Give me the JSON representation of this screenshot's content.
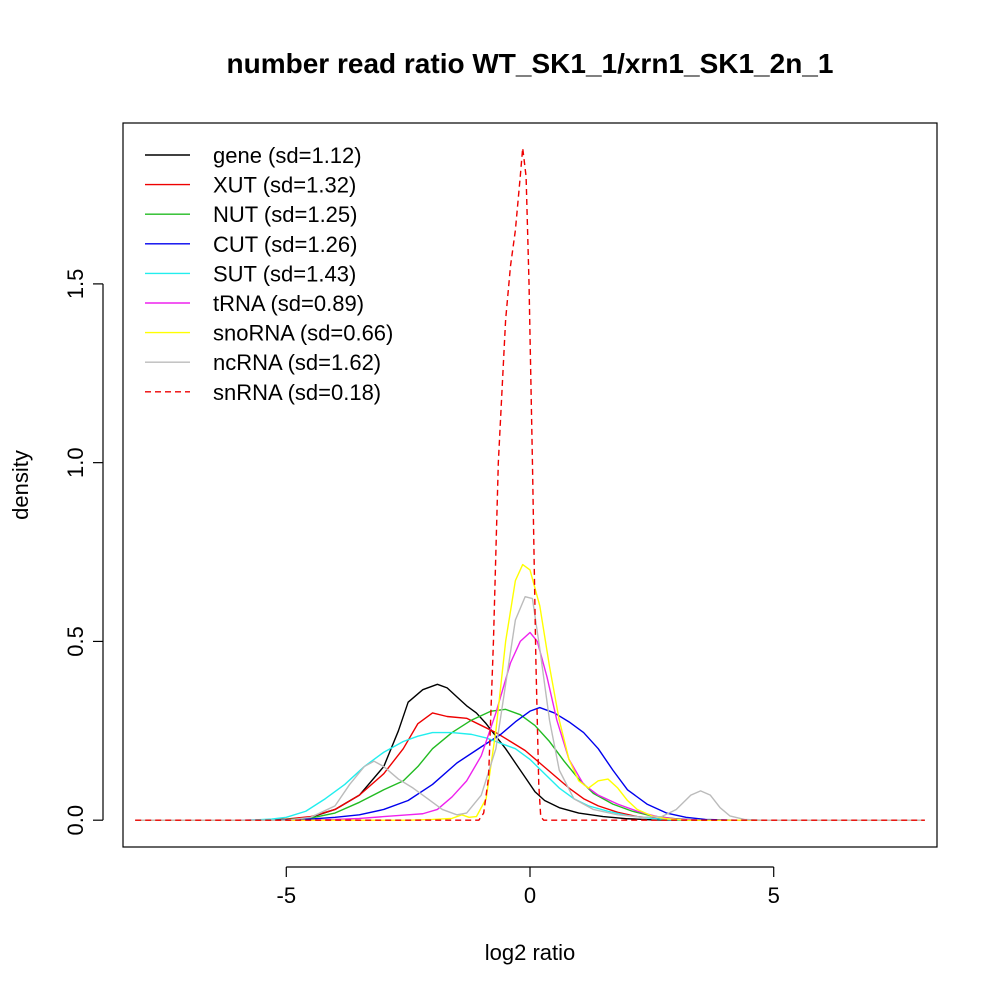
{
  "chart_data": {
    "type": "line",
    "title": "number read ratio WT_SK1_1/xrn1_SK1_2n_1",
    "xlabel": "log2 ratio",
    "ylabel": "density",
    "xlim": [
      -8.35,
      8.35
    ],
    "ylim": [
      -0.075,
      1.95
    ],
    "x_ticks": [
      -5,
      0,
      5
    ],
    "x_tick_labels": [
      "-5",
      "0",
      "5"
    ],
    "y_ticks": [
      0,
      0.5,
      1.0,
      1.5
    ],
    "y_tick_labels": [
      "0.0",
      "0.5",
      "1.0",
      "1.5"
    ],
    "grid": false,
    "legend_position": "top-left",
    "series": [
      {
        "name": "gene (sd=1.12)",
        "color": "#000000",
        "dash": "solid",
        "points": [
          [
            -8.1,
            0
          ],
          [
            -5.5,
            0
          ],
          [
            -5,
            0.002
          ],
          [
            -4.5,
            0.008
          ],
          [
            -4,
            0.03
          ],
          [
            -3.5,
            0.07
          ],
          [
            -3,
            0.15
          ],
          [
            -2.7,
            0.25
          ],
          [
            -2.5,
            0.33
          ],
          [
            -2.2,
            0.365
          ],
          [
            -1.9,
            0.38
          ],
          [
            -1.7,
            0.37
          ],
          [
            -1.5,
            0.345
          ],
          [
            -1.3,
            0.32
          ],
          [
            -1.1,
            0.3
          ],
          [
            -0.9,
            0.27
          ],
          [
            -0.7,
            0.235
          ],
          [
            -0.5,
            0.2
          ],
          [
            -0.3,
            0.16
          ],
          [
            -0.1,
            0.12
          ],
          [
            0.1,
            0.08
          ],
          [
            0.3,
            0.055
          ],
          [
            0.6,
            0.035
          ],
          [
            1,
            0.02
          ],
          [
            1.5,
            0.01
          ],
          [
            2,
            0.004
          ],
          [
            2.5,
            0.001
          ],
          [
            3,
            0
          ],
          [
            8.1,
            0
          ]
        ]
      },
      {
        "name": "XUT (sd=1.32)",
        "color": "#ee0000",
        "dash": "solid",
        "points": [
          [
            -8.1,
            0
          ],
          [
            -5.5,
            0
          ],
          [
            -5,
            0.003
          ],
          [
            -4.5,
            0.01
          ],
          [
            -4,
            0.03
          ],
          [
            -3.5,
            0.07
          ],
          [
            -3,
            0.13
          ],
          [
            -2.6,
            0.2
          ],
          [
            -2.3,
            0.27
          ],
          [
            -2,
            0.3
          ],
          [
            -1.7,
            0.29
          ],
          [
            -1.3,
            0.285
          ],
          [
            -1,
            0.265
          ],
          [
            -0.7,
            0.245
          ],
          [
            -0.4,
            0.22
          ],
          [
            -0.1,
            0.195
          ],
          [
            0.2,
            0.16
          ],
          [
            0.5,
            0.125
          ],
          [
            0.8,
            0.09
          ],
          [
            1.1,
            0.06
          ],
          [
            1.4,
            0.04
          ],
          [
            1.8,
            0.022
          ],
          [
            2.2,
            0.01
          ],
          [
            2.7,
            0.003
          ],
          [
            3.2,
            0
          ],
          [
            8.1,
            0
          ]
        ]
      },
      {
        "name": "NUT (sd=1.25)",
        "color": "#22bb22",
        "dash": "solid",
        "points": [
          [
            -8.1,
            0
          ],
          [
            -5.5,
            0
          ],
          [
            -5,
            0.002
          ],
          [
            -4.5,
            0.006
          ],
          [
            -4,
            0.02
          ],
          [
            -3.5,
            0.05
          ],
          [
            -3,
            0.085
          ],
          [
            -2.6,
            0.11
          ],
          [
            -2.3,
            0.15
          ],
          [
            -2,
            0.2
          ],
          [
            -1.6,
            0.245
          ],
          [
            -1.2,
            0.28
          ],
          [
            -0.8,
            0.305
          ],
          [
            -0.5,
            0.31
          ],
          [
            -0.2,
            0.295
          ],
          [
            0.1,
            0.265
          ],
          [
            0.4,
            0.22
          ],
          [
            0.7,
            0.165
          ],
          [
            1,
            0.115
          ],
          [
            1.3,
            0.075
          ],
          [
            1.7,
            0.045
          ],
          [
            2.1,
            0.025
          ],
          [
            2.5,
            0.012
          ],
          [
            3,
            0.004
          ],
          [
            3.5,
            0
          ],
          [
            8.1,
            0
          ]
        ]
      },
      {
        "name": "CUT (sd=1.26)",
        "color": "#0000ee",
        "dash": "solid",
        "points": [
          [
            -8.1,
            0
          ],
          [
            -6,
            0
          ],
          [
            -5,
            0.001
          ],
          [
            -4.5,
            0.003
          ],
          [
            -4,
            0.008
          ],
          [
            -3.5,
            0.015
          ],
          [
            -3,
            0.03
          ],
          [
            -2.5,
            0.055
          ],
          [
            -2,
            0.1
          ],
          [
            -1.5,
            0.16
          ],
          [
            -1,
            0.205
          ],
          [
            -0.6,
            0.24
          ],
          [
            -0.3,
            0.275
          ],
          [
            0,
            0.305
          ],
          [
            0.2,
            0.315
          ],
          [
            0.5,
            0.3
          ],
          [
            0.8,
            0.275
          ],
          [
            1.1,
            0.245
          ],
          [
            1.4,
            0.2
          ],
          [
            1.7,
            0.14
          ],
          [
            2,
            0.085
          ],
          [
            2.4,
            0.045
          ],
          [
            2.8,
            0.02
          ],
          [
            3.2,
            0.008
          ],
          [
            3.6,
            0.002
          ],
          [
            4.2,
            0
          ],
          [
            8.1,
            0
          ]
        ]
      },
      {
        "name": "SUT (sd=1.43)",
        "color": "#22eeee",
        "dash": "solid",
        "points": [
          [
            -8.1,
            0
          ],
          [
            -5.8,
            0
          ],
          [
            -5.3,
            0.003
          ],
          [
            -5,
            0.008
          ],
          [
            -4.6,
            0.025
          ],
          [
            -4.2,
            0.06
          ],
          [
            -3.8,
            0.1
          ],
          [
            -3.4,
            0.15
          ],
          [
            -3,
            0.19
          ],
          [
            -2.6,
            0.22
          ],
          [
            -2.3,
            0.235
          ],
          [
            -2,
            0.245
          ],
          [
            -1.6,
            0.245
          ],
          [
            -1.2,
            0.24
          ],
          [
            -0.9,
            0.23
          ],
          [
            -0.6,
            0.215
          ],
          [
            -0.3,
            0.2
          ],
          [
            0,
            0.17
          ],
          [
            0.3,
            0.13
          ],
          [
            0.6,
            0.09
          ],
          [
            0.9,
            0.06
          ],
          [
            1.2,
            0.04
          ],
          [
            1.6,
            0.025
          ],
          [
            2,
            0.013
          ],
          [
            2.5,
            0.005
          ],
          [
            3,
            0
          ],
          [
            8.1,
            0
          ]
        ]
      },
      {
        "name": "tRNA (sd=0.89)",
        "color": "#ee22ee",
        "dash": "solid",
        "points": [
          [
            -8.1,
            0
          ],
          [
            -4.5,
            0
          ],
          [
            -4,
            0.002
          ],
          [
            -3.5,
            0.005
          ],
          [
            -3,
            0.01
          ],
          [
            -2.5,
            0.015
          ],
          [
            -2.2,
            0.018
          ],
          [
            -1.9,
            0.03
          ],
          [
            -1.6,
            0.065
          ],
          [
            -1.3,
            0.11
          ],
          [
            -1,
            0.18
          ],
          [
            -0.7,
            0.3
          ],
          [
            -0.4,
            0.44
          ],
          [
            -0.2,
            0.5
          ],
          [
            0,
            0.525
          ],
          [
            0.15,
            0.5
          ],
          [
            0.35,
            0.4
          ],
          [
            0.55,
            0.28
          ],
          [
            0.8,
            0.17
          ],
          [
            1.1,
            0.1
          ],
          [
            1.4,
            0.07
          ],
          [
            1.8,
            0.045
          ],
          [
            2.2,
            0.025
          ],
          [
            2.6,
            0.01
          ],
          [
            3,
            0.003
          ],
          [
            3.5,
            0
          ],
          [
            8.1,
            0
          ]
        ]
      },
      {
        "name": "snoRNA (sd=0.66)",
        "color": "#ffff00",
        "dash": "solid",
        "points": [
          [
            -8.1,
            0
          ],
          [
            -2.5,
            0
          ],
          [
            -2,
            0.002
          ],
          [
            -1.6,
            0.005
          ],
          [
            -1.4,
            0.015
          ],
          [
            -1.25,
            0.008
          ],
          [
            -1.1,
            0.01
          ],
          [
            -0.9,
            0.06
          ],
          [
            -0.7,
            0.25
          ],
          [
            -0.5,
            0.5
          ],
          [
            -0.3,
            0.67
          ],
          [
            -0.15,
            0.715
          ],
          [
            0,
            0.7
          ],
          [
            0.2,
            0.6
          ],
          [
            0.4,
            0.43
          ],
          [
            0.6,
            0.28
          ],
          [
            0.8,
            0.17
          ],
          [
            1,
            0.11
          ],
          [
            1.2,
            0.09
          ],
          [
            1.4,
            0.11
          ],
          [
            1.6,
            0.115
          ],
          [
            1.8,
            0.09
          ],
          [
            2,
            0.055
          ],
          [
            2.2,
            0.03
          ],
          [
            2.5,
            0.012
          ],
          [
            2.8,
            0.004
          ],
          [
            3.2,
            0
          ],
          [
            8.1,
            0
          ]
        ]
      },
      {
        "name": "ncRNA (sd=1.62)",
        "color": "#bbbbbb",
        "dash": "solid",
        "points": [
          [
            -8.1,
            0
          ],
          [
            -5,
            0
          ],
          [
            -4.5,
            0.008
          ],
          [
            -4,
            0.04
          ],
          [
            -3.7,
            0.1
          ],
          [
            -3.4,
            0.15
          ],
          [
            -3.2,
            0.165
          ],
          [
            -3,
            0.15
          ],
          [
            -2.7,
            0.115
          ],
          [
            -2.4,
            0.09
          ],
          [
            -2.1,
            0.06
          ],
          [
            -1.8,
            0.03
          ],
          [
            -1.5,
            0.015
          ],
          [
            -1.3,
            0.02
          ],
          [
            -1,
            0.07
          ],
          [
            -0.7,
            0.2
          ],
          [
            -0.5,
            0.38
          ],
          [
            -0.3,
            0.56
          ],
          [
            -0.1,
            0.625
          ],
          [
            0.05,
            0.62
          ],
          [
            0.2,
            0.48
          ],
          [
            0.4,
            0.28
          ],
          [
            0.6,
            0.14
          ],
          [
            0.9,
            0.06
          ],
          [
            1.3,
            0.03
          ],
          [
            1.8,
            0.015
          ],
          [
            2.3,
            0.008
          ],
          [
            2.7,
            0.01
          ],
          [
            3,
            0.03
          ],
          [
            3.3,
            0.07
          ],
          [
            3.5,
            0.082
          ],
          [
            3.7,
            0.07
          ],
          [
            3.9,
            0.035
          ],
          [
            4.1,
            0.012
          ],
          [
            4.4,
            0.002
          ],
          [
            4.8,
            0
          ],
          [
            8.1,
            0
          ]
        ]
      },
      {
        "name": "snRNA (sd=0.18)",
        "color": "#ee0000",
        "dash": "dashed",
        "points": [
          [
            -8.1,
            0
          ],
          [
            -1.05,
            0
          ],
          [
            -0.95,
            0.02
          ],
          [
            -0.85,
            0.12
          ],
          [
            -0.75,
            0.5
          ],
          [
            -0.65,
            1.0
          ],
          [
            -0.5,
            1.4
          ],
          [
            -0.4,
            1.55
          ],
          [
            -0.3,
            1.65
          ],
          [
            -0.2,
            1.8
          ],
          [
            -0.15,
            1.88
          ],
          [
            -0.08,
            1.8
          ],
          [
            -0.02,
            1.5
          ],
          [
            0.05,
            1.0
          ],
          [
            0.12,
            0.45
          ],
          [
            0.18,
            0.1
          ],
          [
            0.22,
            0.01
          ],
          [
            0.28,
            0
          ],
          [
            8.1,
            0
          ]
        ]
      }
    ]
  }
}
